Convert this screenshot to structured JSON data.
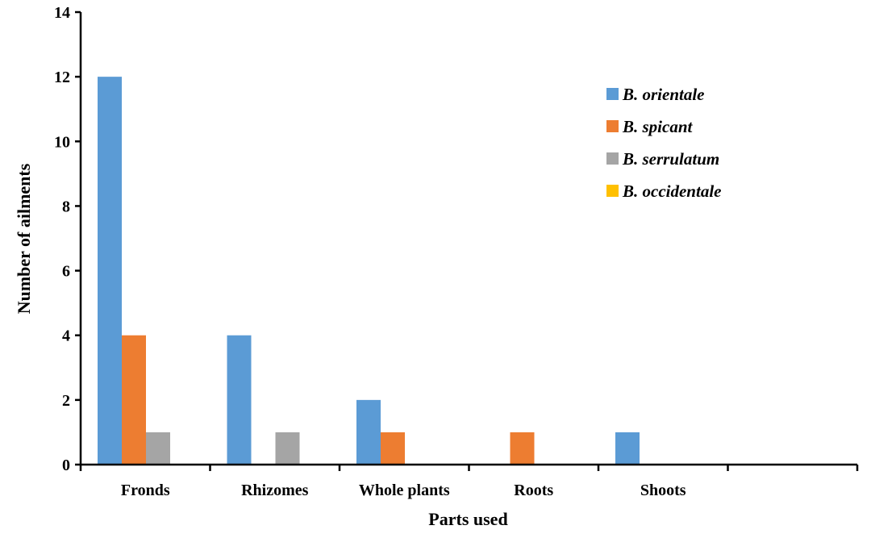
{
  "chart_data": {
    "type": "bar",
    "title": "",
    "xlabel": "Parts used",
    "ylabel": "Number of ailments",
    "ylim": [
      0,
      14
    ],
    "yticks": [
      "0",
      "2",
      "4",
      "6",
      "8",
      "10",
      "12",
      "14"
    ],
    "categories": [
      "Fronds",
      "Rhizomes",
      "Whole plants",
      "Roots",
      "Shoots",
      ""
    ],
    "series": [
      {
        "name": "B. orientale",
        "color": "#5b9bd5",
        "values": [
          12,
          4,
          2,
          0,
          1,
          0
        ]
      },
      {
        "name": "B. spicant",
        "color": "#ed7d31",
        "values": [
          4,
          0,
          1,
          1,
          0,
          0
        ]
      },
      {
        "name": "B. serrulatum",
        "color": "#a5a5a5",
        "values": [
          1,
          1,
          0,
          0,
          0,
          0
        ]
      },
      {
        "name": "B. occidentale",
        "color": "#ffc000",
        "values": [
          0,
          0,
          0,
          0,
          0,
          0
        ]
      }
    ],
    "grid": false,
    "legend_position": "top-right"
  }
}
